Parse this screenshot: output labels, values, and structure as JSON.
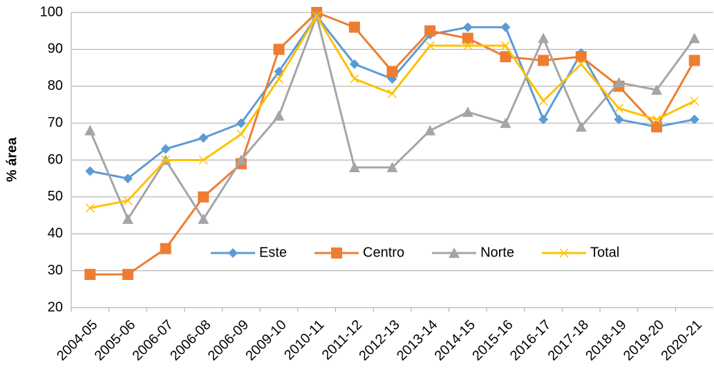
{
  "chart_data": {
    "type": "line",
    "y_label": "% área",
    "categories": [
      "2004-05",
      "2005-06",
      "2006-07",
      "2006-08",
      "2006-09",
      "2009-10",
      "2010-11",
      "2011-12",
      "2012-13",
      "2013-14",
      "2014-15",
      "2015-16",
      "2016-17",
      "2017-18",
      "2018-19",
      "2019-20",
      "2020-21"
    ],
    "series": [
      {
        "name": "Este",
        "color": "#5b9bd5",
        "marker": "diamond",
        "values": [
          57,
          55,
          63,
          66,
          70,
          84,
          99,
          86,
          82,
          94,
          96,
          96,
          71,
          89,
          71,
          69,
          71
        ]
      },
      {
        "name": "Centro",
        "color": "#ed7d31",
        "marker": "square",
        "values": [
          29,
          29,
          36,
          50,
          59,
          90,
          100,
          96,
          84,
          95,
          93,
          88,
          87,
          88,
          80,
          69,
          87
        ]
      },
      {
        "name": "Norte",
        "color": "#a5a5a5",
        "marker": "triangle",
        "values": [
          68,
          44,
          60,
          44,
          60,
          72,
          99,
          58,
          58,
          68,
          73,
          70,
          93,
          69,
          81,
          79,
          93
        ]
      },
      {
        "name": "Total",
        "color": "#ffc000",
        "marker": "x",
        "values": [
          47,
          49,
          60,
          60,
          67,
          82,
          99,
          82,
          78,
          91,
          91,
          91,
          76,
          86,
          74,
          71,
          76
        ]
      }
    ],
    "ylim": [
      20,
      100
    ],
    "yticks": [
      20,
      30,
      40,
      50,
      60,
      70,
      80,
      90,
      100
    ],
    "grid": true,
    "legend": "inside"
  }
}
